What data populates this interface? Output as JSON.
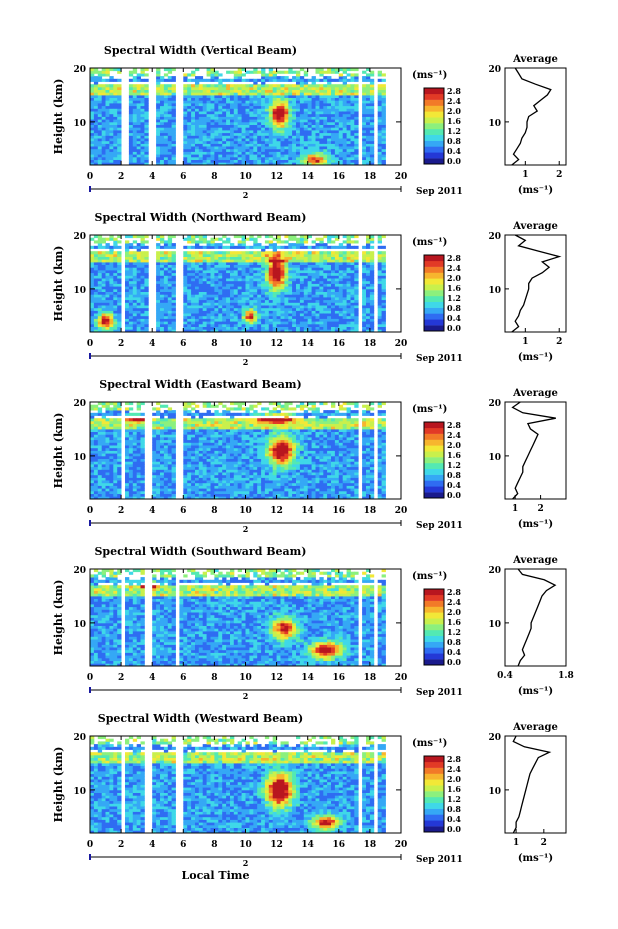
{
  "figure": {
    "xlabel": "Local Time",
    "date_label": "Sep 2011",
    "cbar_unit_label": "(ms⁻¹)",
    "avg_title": "Average",
    "avg_unit_label": "(ms⁻¹)",
    "ylabel": "Height (km)",
    "date_marker": "2"
  },
  "colormap": [
    "#1a1a8c",
    "#2438d6",
    "#2f6cf2",
    "#35a8f5",
    "#3fd8e8",
    "#53e9b3",
    "#8cf07d",
    "#c9f04c",
    "#f2e837",
    "#f7b52e",
    "#f27a28",
    "#e23a26",
    "#b8161f"
  ],
  "chart_data": [
    {
      "type": "heatmap",
      "title": "Spectral Width (Vertical Beam)",
      "x_ticks": [
        0,
        2,
        4,
        6,
        8,
        10,
        12,
        14,
        16,
        18,
        20
      ],
      "y_ticks": [
        10,
        20
      ],
      "xlim": [
        0,
        20
      ],
      "ylim": [
        2,
        20
      ],
      "colorbar": {
        "ticks": [
          "2.8",
          "2.4",
          "2.0",
          "1.6",
          "1.2",
          "0.8",
          "0.4",
          "0.0"
        ],
        "range": [
          0,
          2.8
        ]
      },
      "gaps_hours": [
        [
          2.0,
          2.5
        ],
        [
          3.8,
          4.2
        ],
        [
          5.5,
          5.9
        ],
        [
          17.3,
          17.6
        ],
        [
          18.2,
          18.4
        ]
      ],
      "hotspots": [
        {
          "t": 12.2,
          "h": 11.5,
          "dt": 0.6,
          "dh": 2.5,
          "v": 2.4
        },
        {
          "t": 14.5,
          "h": 3,
          "dt": 0.8,
          "dh": 1.2,
          "v": 1.8
        }
      ],
      "average_profile": {
        "xticks": [
          1,
          2
        ],
        "xlim": [
          0.4,
          2.2
        ],
        "yticks": [
          10,
          20
        ],
        "height": [
          2,
          3,
          4,
          5,
          6,
          7,
          8,
          9,
          10,
          11,
          12,
          13,
          14,
          15,
          16,
          17,
          18,
          19,
          20
        ],
        "value": [
          0.6,
          0.8,
          0.65,
          0.75,
          0.85,
          0.9,
          1.0,
          1.05,
          1.05,
          1.1,
          1.35,
          1.25,
          1.45,
          1.65,
          1.75,
          1.3,
          0.9,
          0.8,
          0.7
        ]
      }
    },
    {
      "type": "heatmap",
      "title": "Spectral Width (Northward Beam)",
      "x_ticks": [
        0,
        2,
        4,
        6,
        8,
        10,
        12,
        14,
        16,
        18,
        20
      ],
      "y_ticks": [
        10,
        20
      ],
      "xlim": [
        0,
        20
      ],
      "ylim": [
        2,
        20
      ],
      "colorbar": {
        "ticks": [
          "2.8",
          "2.4",
          "2.0",
          "1.6",
          "1.2",
          "0.8",
          "0.4",
          "0.0"
        ],
        "range": [
          0,
          2.8
        ]
      },
      "gaps_hours": [
        [
          2.0,
          2.3
        ],
        [
          3.8,
          4.2
        ],
        [
          5.6,
          5.9
        ],
        [
          17.3,
          17.5
        ],
        [
          18.2,
          18.4
        ]
      ],
      "hotspots": [
        {
          "t": 12.0,
          "h": 13,
          "dt": 0.6,
          "dh": 3,
          "v": 2.5
        },
        {
          "t": 1.0,
          "h": 4,
          "dt": 0.5,
          "dh": 1.5,
          "v": 2.2
        },
        {
          "t": 10.3,
          "h": 5,
          "dt": 0.4,
          "dh": 1.2,
          "v": 2.0
        }
      ],
      "average_profile": {
        "xticks": [
          1,
          2
        ],
        "xlim": [
          0.4,
          2.2
        ],
        "yticks": [
          10,
          20
        ],
        "height": [
          2,
          3,
          4,
          5,
          6,
          7,
          8,
          9,
          10,
          11,
          12,
          13,
          14,
          15,
          16,
          17,
          18,
          19,
          20
        ],
        "value": [
          0.6,
          0.8,
          0.7,
          0.8,
          0.85,
          0.95,
          1.0,
          1.05,
          1.1,
          1.1,
          1.2,
          1.5,
          1.7,
          1.5,
          2.0,
          1.4,
          0.8,
          1.0,
          0.7
        ]
      }
    },
    {
      "type": "heatmap",
      "title": "Spectral Width (Eastward Beam)",
      "x_ticks": [
        0,
        2,
        4,
        6,
        8,
        10,
        12,
        14,
        16,
        18,
        20
      ],
      "y_ticks": [
        10,
        20
      ],
      "xlim": [
        0,
        20
      ],
      "ylim": [
        2,
        20
      ],
      "colorbar": {
        "ticks": [
          "2.8",
          "2.4",
          "2.0",
          "1.6",
          "1.2",
          "0.8",
          "0.4",
          "0.0"
        ],
        "range": [
          0,
          2.8
        ]
      },
      "gaps_hours": [
        [
          2.0,
          2.3
        ],
        [
          3.6,
          4.0
        ],
        [
          5.6,
          5.9
        ],
        [
          17.3,
          17.5
        ],
        [
          18.2,
          18.4
        ]
      ],
      "hotspots": [
        {
          "t": 12.3,
          "h": 11,
          "dt": 0.8,
          "dh": 2.5,
          "v": 2.6
        },
        {
          "t": 12.0,
          "h": 17,
          "dt": 1.0,
          "dh": 0.8,
          "v": 2.4
        },
        {
          "t": 3.0,
          "h": 17,
          "dt": 0.6,
          "dh": 0.6,
          "v": 2.2
        }
      ],
      "average_profile": {
        "xticks": [
          1,
          2
        ],
        "xlim": [
          0.6,
          3.0
        ],
        "yticks": [
          10,
          20
        ],
        "height": [
          2,
          3,
          4,
          5,
          6,
          7,
          8,
          9,
          10,
          11,
          12,
          13,
          14,
          15,
          16,
          17,
          18,
          19,
          20
        ],
        "value": [
          0.9,
          1.1,
          1.0,
          1.1,
          1.2,
          1.3,
          1.3,
          1.4,
          1.5,
          1.6,
          1.7,
          1.8,
          1.9,
          1.6,
          1.5,
          2.6,
          1.3,
          0.9,
          1.2
        ]
      }
    },
    {
      "type": "heatmap",
      "title": "Spectral Width (Southward Beam)",
      "x_ticks": [
        0,
        2,
        4,
        6,
        8,
        10,
        12,
        14,
        16,
        18,
        20
      ],
      "y_ticks": [
        10,
        20
      ],
      "xlim": [
        0,
        20
      ],
      "ylim": [
        2,
        20
      ],
      "colorbar": {
        "ticks": [
          "2.8",
          "2.4",
          "2.0",
          "1.6",
          "1.2",
          "0.8",
          "0.4",
          "0.0"
        ],
        "range": [
          0,
          2.8
        ]
      },
      "gaps_hours": [
        [
          2.0,
          2.2
        ],
        [
          3.6,
          3.9
        ],
        [
          5.6,
          5.8
        ],
        [
          17.3,
          17.5
        ],
        [
          18.2,
          18.4
        ]
      ],
      "hotspots": [
        {
          "t": 15.2,
          "h": 5,
          "dt": 1.0,
          "dh": 1.5,
          "v": 2.3
        },
        {
          "t": 12.5,
          "h": 9,
          "dt": 0.8,
          "dh": 2.0,
          "v": 2.0
        },
        {
          "t": 3.8,
          "h": 17,
          "dt": 0.5,
          "dh": 0.8,
          "v": 2.2
        }
      ],
      "average_profile": {
        "xticks": [
          "0.4",
          "1.8"
        ],
        "xlim": [
          0.4,
          1.8
        ],
        "yticks": [
          10,
          20
        ],
        "height": [
          2,
          3,
          4,
          5,
          6,
          7,
          8,
          9,
          10,
          11,
          12,
          13,
          14,
          15,
          16,
          17,
          18,
          19,
          20
        ],
        "value": [
          0.7,
          0.75,
          0.85,
          0.8,
          0.85,
          0.9,
          0.95,
          1.0,
          1.0,
          1.05,
          1.1,
          1.15,
          1.2,
          1.25,
          1.35,
          1.55,
          1.3,
          0.8,
          0.7
        ]
      }
    },
    {
      "type": "heatmap",
      "title": "Spectral Width (Westward Beam)",
      "x_ticks": [
        0,
        2,
        4,
        6,
        8,
        10,
        12,
        14,
        16,
        18,
        20
      ],
      "y_ticks": [
        10,
        20
      ],
      "xlim": [
        0,
        20
      ],
      "ylim": [
        2,
        20
      ],
      "colorbar": {
        "ticks": [
          "2.8",
          "2.4",
          "2.0",
          "1.6",
          "1.2",
          "0.8",
          "0.4",
          "0.0"
        ],
        "range": [
          0,
          2.8
        ]
      },
      "gaps_hours": [
        [
          2.0,
          2.3
        ],
        [
          3.6,
          4.0
        ],
        [
          5.6,
          5.9
        ],
        [
          17.3,
          17.5
        ],
        [
          18.2,
          18.4
        ]
      ],
      "hotspots": [
        {
          "t": 12.2,
          "h": 10,
          "dt": 0.8,
          "dh": 3.0,
          "v": 2.6
        },
        {
          "t": 15.2,
          "h": 4,
          "dt": 0.8,
          "dh": 1.2,
          "v": 2.2
        }
      ],
      "average_profile": {
        "xticks": [
          1,
          2
        ],
        "xlim": [
          0.6,
          2.8
        ],
        "yticks": [
          10,
          20
        ],
        "height": [
          2,
          3,
          4,
          5,
          6,
          7,
          8,
          9,
          10,
          11,
          12,
          13,
          14,
          15,
          16,
          17,
          18,
          19,
          20
        ],
        "value": [
          0.9,
          1.0,
          1.0,
          1.1,
          1.15,
          1.2,
          1.25,
          1.3,
          1.35,
          1.4,
          1.45,
          1.5,
          1.6,
          1.7,
          1.8,
          2.2,
          1.3,
          0.9,
          1.0
        ]
      }
    }
  ]
}
